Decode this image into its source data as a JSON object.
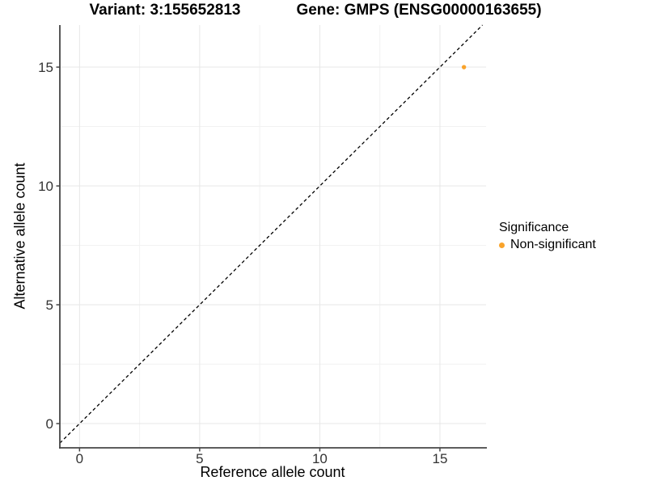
{
  "titles": {
    "variant": "Variant: 3:155652813",
    "gene": "Gene: GMPS (ENSG00000163655)"
  },
  "chart_data": {
    "type": "scatter",
    "xlabel": "Reference allele count",
    "ylabel": "Alternative allele count",
    "xlim": [
      -0.82,
      16.92
    ],
    "ylim": [
      -1.02,
      16.77
    ],
    "x_ticks": [
      0,
      5,
      10,
      15
    ],
    "y_ticks": [
      0,
      5,
      10,
      15
    ],
    "x_minor_ticks": [
      2.5,
      7.5,
      12.5
    ],
    "y_minor_ticks": [
      2.5,
      7.5,
      12.5
    ],
    "grid": true,
    "points": [
      {
        "x": 16,
        "y": 15,
        "series": "Non-significant"
      }
    ],
    "reference_line": {
      "kind": "identity y=x",
      "style": "dashed",
      "color": "#000000"
    },
    "legend": {
      "title": "Significance",
      "position": "right",
      "items": [
        {
          "label": "Non-significant",
          "color": "#F9A32B"
        }
      ]
    }
  },
  "colors": {
    "point": "#F9A32B",
    "axis_line": "#464646",
    "tick_label": "#333333",
    "grid_major": "#e7e7e7",
    "grid_minor": "#f2f2f2",
    "dashed_line": "#000000",
    "background": "#ffffff"
  }
}
